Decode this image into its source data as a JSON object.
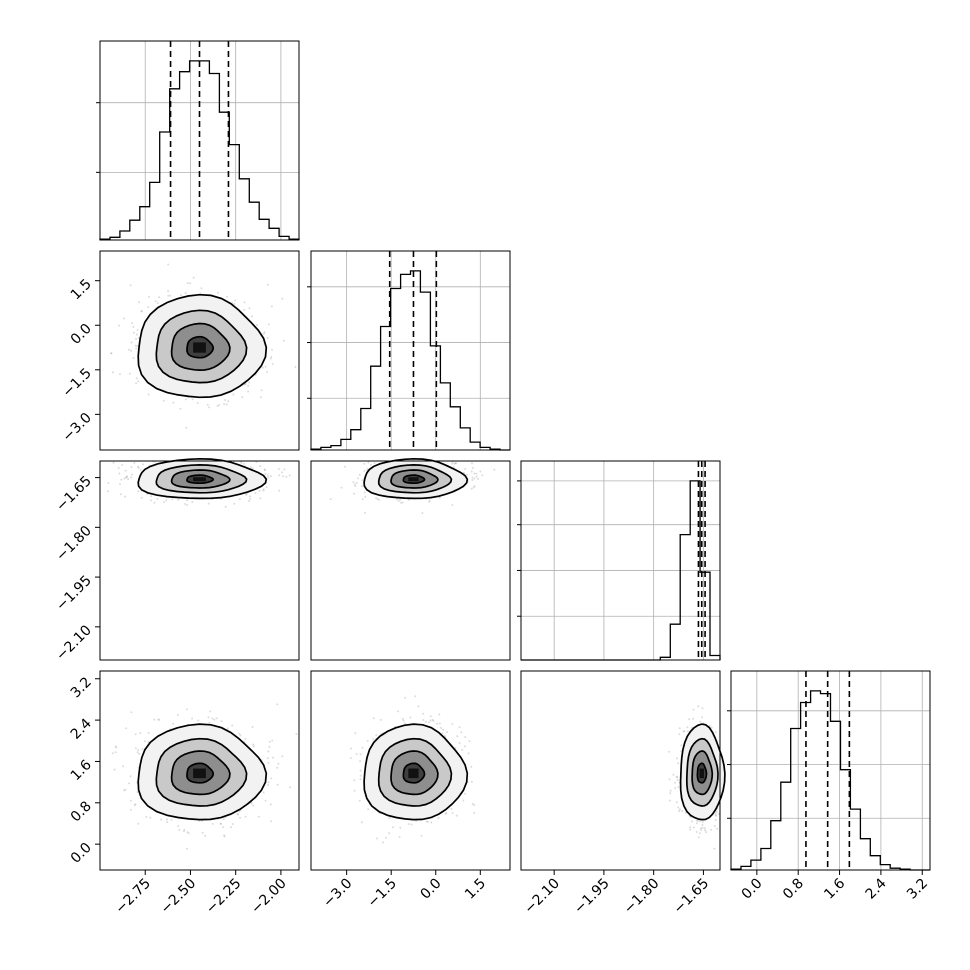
{
  "chart_data": {
    "type": "corner",
    "parameters": [
      {
        "ticks": [
          -2.75,
          -2.5,
          -2.25,
          -2.0
        ],
        "tick_labels": [
          "−2.75",
          "−2.50",
          "−2.25",
          "−2.00"
        ],
        "range": [
          -3.0,
          -1.9
        ],
        "quantiles": [
          -2.61,
          -2.45,
          -2.29
        ],
        "hist_counts": [
          1,
          3,
          10,
          22,
          37,
          64,
          120,
          168,
          187,
          199,
          199,
          185,
          142,
          106,
          68,
          42,
          23,
          13,
          4,
          1
        ]
      },
      {
        "ticks": [
          -3.0,
          -1.5,
          0.0,
          1.5
        ],
        "tick_labels": [
          "−3.0",
          "−1.5",
          "0.0",
          "1.5"
        ],
        "range": [
          -4.2,
          2.5
        ],
        "quantiles": [
          -1.55,
          -0.75,
          0.02
        ],
        "hist_counts": [
          1,
          3,
          5,
          12,
          23,
          47,
          95,
          140,
          183,
          199,
          203,
          179,
          118,
          76,
          49,
          25,
          9,
          3,
          1,
          0
        ]
      },
      {
        "ticks": [
          -2.1,
          -1.95,
          -1.8,
          -1.65
        ],
        "tick_labels": [
          "−2.10",
          "−1.95",
          "−1.80",
          "−1.65"
        ],
        "range": [
          -2.2,
          -1.6
        ],
        "quantiles": [
          -1.665,
          -1.655,
          -1.645
        ],
        "hist_counts": [
          0,
          0,
          0,
          0,
          0,
          0,
          0,
          0,
          0,
          0,
          0,
          0,
          0,
          0,
          3,
          40,
          140,
          200,
          98,
          5
        ]
      },
      {
        "ticks": [
          0.0,
          0.8,
          1.6,
          2.4,
          3.2
        ],
        "tick_labels": [
          "0.0",
          "0.8",
          "1.6",
          "2.4",
          "3.2"
        ],
        "range": [
          -0.5,
          3.35
        ],
        "quantiles": [
          0.95,
          1.37,
          1.79
        ],
        "hist_counts": [
          1,
          4,
          11,
          24,
          55,
          98,
          158,
          187,
          200,
          197,
          166,
          112,
          68,
          35,
          16,
          6,
          2,
          1,
          0,
          0
        ]
      }
    ],
    "grid": true
  }
}
